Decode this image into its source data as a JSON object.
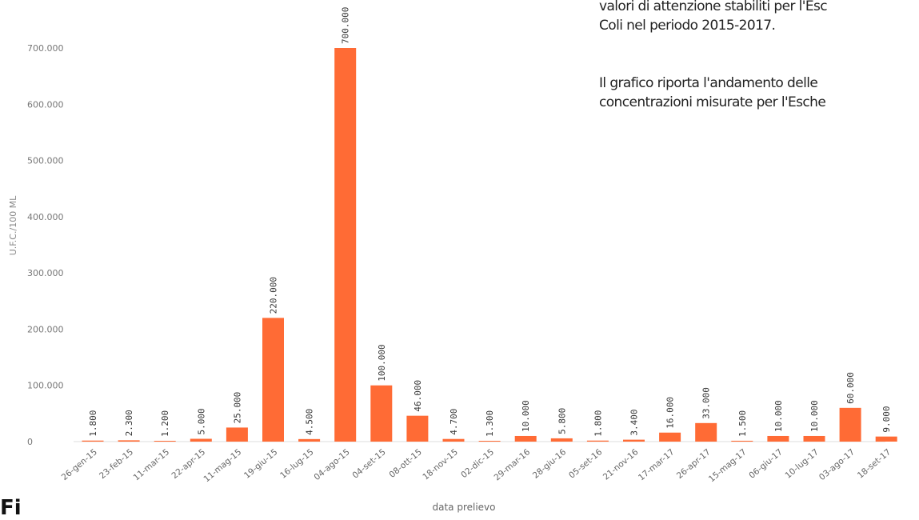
{
  "side_text": {
    "line1": "valori di attenzione stabiliti per l'Esc",
    "line2": "Coli nel periodo 2015-2017.",
    "line3": "Il grafico riporta l'andamento delle",
    "line4": "concentrazioni misurate per l'Esche"
  },
  "figure_label": "Fi",
  "chart_data": {
    "type": "bar",
    "xlabel": "data prelievo",
    "ylabel": "U.F.C./100 ML",
    "ylim": [
      0,
      700000
    ],
    "yticks": [
      0,
      100000,
      200000,
      300000,
      400000,
      500000,
      600000,
      700000
    ],
    "ytick_labels": [
      "0",
      "100.000",
      "200.000",
      "300.000",
      "400.000",
      "500.000",
      "600.000",
      "700.000"
    ],
    "bar_color": "#ff6b35",
    "grid": false,
    "categories": [
      "26-gen-15",
      "23-feb-15",
      "11-mar-15",
      "22-apr-15",
      "11-mag-15",
      "19-giu-15",
      "16-lug-15",
      "04-ago-15",
      "04-set-15",
      "08-ott-15",
      "18-nov-15",
      "02-dic-15",
      "29-mar-16",
      "28-giu-16",
      "05-set-16",
      "21-nov-16",
      "17-mar-17",
      "26-apr-17",
      "15-mag-17",
      "06-giu-17",
      "10-lug-17",
      "03-ago-17",
      "18-set-17"
    ],
    "values": [
      1800,
      2300,
      1200,
      5000,
      25000,
      220000,
      4500,
      700000,
      100000,
      46000,
      4700,
      1300,
      10000,
      5800,
      1800,
      3400,
      16000,
      33000,
      1500,
      10000,
      10000,
      60000,
      9000
    ],
    "data_labels": [
      "1.800",
      "2.300",
      "1.200",
      "5.000",
      "25.000",
      "220.000",
      "4.500",
      "700.000",
      "100.000",
      "46.000",
      "4.700",
      "1.300",
      "10.000",
      "5.800",
      "1.800",
      "3.400",
      "16.000",
      "33.000",
      "1.500",
      "10.000",
      "10.000",
      "60.000",
      "9.000"
    ]
  }
}
